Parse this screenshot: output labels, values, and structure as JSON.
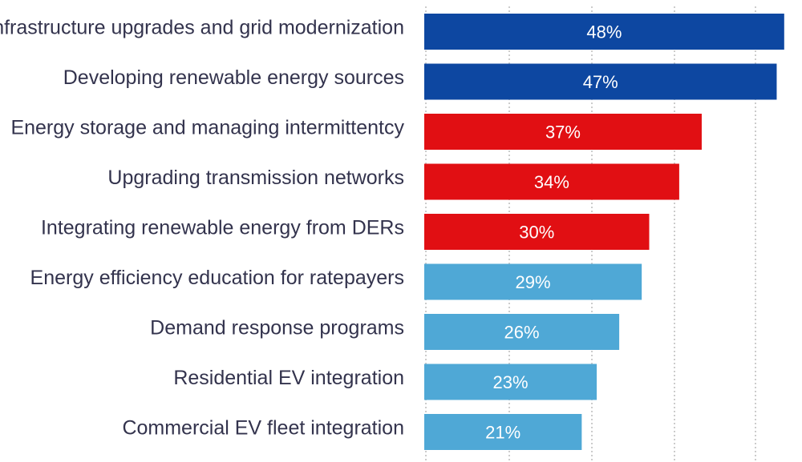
{
  "chart_data": {
    "type": "bar",
    "orientation": "horizontal",
    "categories": [
      "Infrastructure upgrades and grid modernization",
      "Developing renewable energy sources",
      "Energy storage and managing intermittentcy",
      "Upgrading transmission networks",
      "Integrating renewable energy from DERs",
      "Energy efficiency education for ratepayers",
      "Demand response programs",
      "Residential EV integration",
      "Commercial EV fleet integration"
    ],
    "values": [
      48,
      47,
      37,
      34,
      30,
      29,
      26,
      23,
      21
    ],
    "value_labels": [
      "48%",
      "47%",
      "37%",
      "34%",
      "30%",
      "29%",
      "26%",
      "23%",
      "21%"
    ],
    "bar_colors": [
      "#0d47a1",
      "#0d47a1",
      "#e10f13",
      "#e10f13",
      "#e10f13",
      "#4fa8d6",
      "#4fa8d6",
      "#4fa8d6",
      "#4fa8d6"
    ],
    "title": "",
    "xlabel": "",
    "ylabel": "",
    "legend": "none",
    "grid": "vertical dotted"
  }
}
